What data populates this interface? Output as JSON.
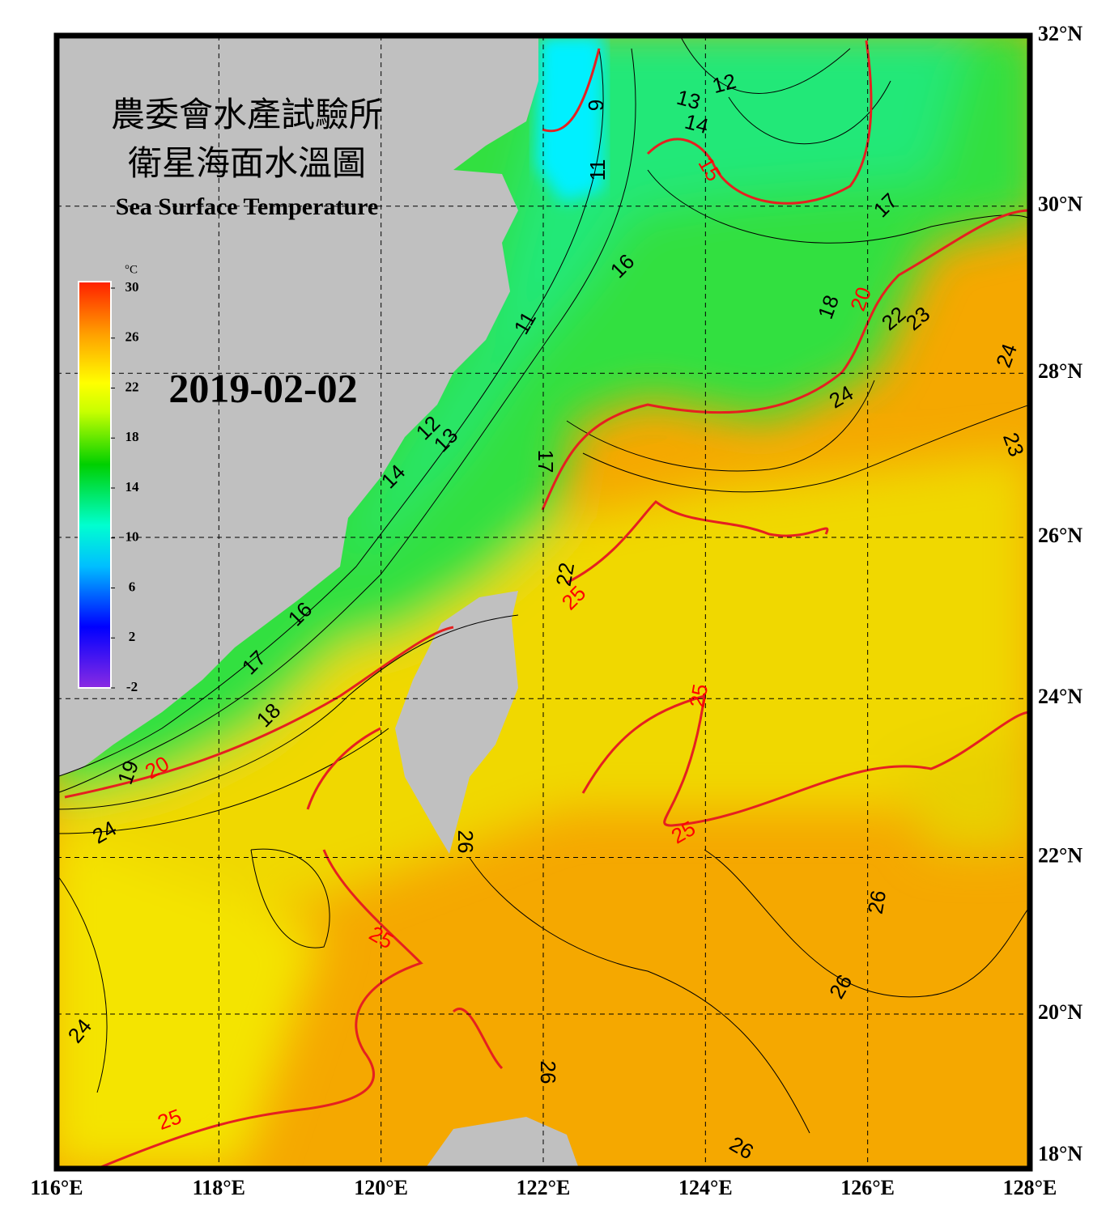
{
  "header": {
    "org": "農委會水產試驗所",
    "title": "衛星海面水溫圖",
    "subtitle": "Sea Surface Temperature",
    "date": "2019-02-02"
  },
  "map": {
    "lonlim": [
      116,
      128
    ],
    "latlim": [
      18,
      32
    ],
    "lonticks": [
      {
        "value": 116,
        "label": "116°E"
      },
      {
        "value": 118,
        "label": "118°E"
      },
      {
        "value": 120,
        "label": "120°E"
      },
      {
        "value": 122,
        "label": "122°E"
      },
      {
        "value": 124,
        "label": "124°E"
      },
      {
        "value": 126,
        "label": "126°E"
      },
      {
        "value": 128,
        "label": "128°E"
      }
    ],
    "latticks": [
      {
        "value": 18,
        "label": "18°N"
      },
      {
        "value": 20,
        "label": "20°N"
      },
      {
        "value": 22,
        "label": "22°N"
      },
      {
        "value": 24,
        "label": "24°N"
      },
      {
        "value": 26,
        "label": "26°N"
      },
      {
        "value": 28,
        "label": "28°N"
      },
      {
        "value": 30,
        "label": "30°N"
      },
      {
        "value": 32,
        "label": "32°N"
      }
    ],
    "grid": true,
    "contour_labels": [
      {
        "text": "12",
        "color": "black"
      },
      {
        "text": "13",
        "color": "black"
      },
      {
        "text": "14",
        "color": "black"
      },
      {
        "text": "15",
        "color": "red"
      },
      {
        "text": "16",
        "color": "black"
      },
      {
        "text": "17",
        "color": "black"
      },
      {
        "text": "18",
        "color": "black"
      },
      {
        "text": "20",
        "color": "red"
      },
      {
        "text": "22",
        "color": "black"
      },
      {
        "text": "23",
        "color": "black"
      },
      {
        "text": "24",
        "color": "black"
      },
      {
        "text": "24",
        "color": "black"
      },
      {
        "text": "23",
        "color": "black"
      },
      {
        "text": "11",
        "color": "black"
      },
      {
        "text": "11",
        "color": "black"
      },
      {
        "text": "9",
        "color": "black"
      },
      {
        "text": "12",
        "color": "black"
      },
      {
        "text": "13",
        "color": "black"
      },
      {
        "text": "14",
        "color": "black"
      },
      {
        "text": "17",
        "color": "black"
      },
      {
        "text": "16",
        "color": "black"
      },
      {
        "text": "17",
        "color": "black"
      },
      {
        "text": "18",
        "color": "black"
      },
      {
        "text": "20",
        "color": "red"
      },
      {
        "text": "19",
        "color": "black"
      },
      {
        "text": "24",
        "color": "black"
      },
      {
        "text": "25",
        "color": "red"
      },
      {
        "text": "25",
        "color": "red"
      },
      {
        "text": "25",
        "color": "red"
      },
      {
        "text": "26",
        "color": "black"
      },
      {
        "text": "26",
        "color": "black"
      },
      {
        "text": "26",
        "color": "black"
      },
      {
        "text": "25",
        "color": "red"
      },
      {
        "text": "26",
        "color": "black"
      },
      {
        "text": "24",
        "color": "black"
      },
      {
        "text": "25",
        "color": "red"
      },
      {
        "text": "26",
        "color": "black"
      },
      {
        "text": "22",
        "color": "black"
      }
    ]
  },
  "colorbar": {
    "unit": "°C",
    "lim": [
      -2,
      30
    ],
    "ticks": [
      30,
      26,
      22,
      18,
      14,
      10,
      6,
      2,
      -2
    ]
  }
}
